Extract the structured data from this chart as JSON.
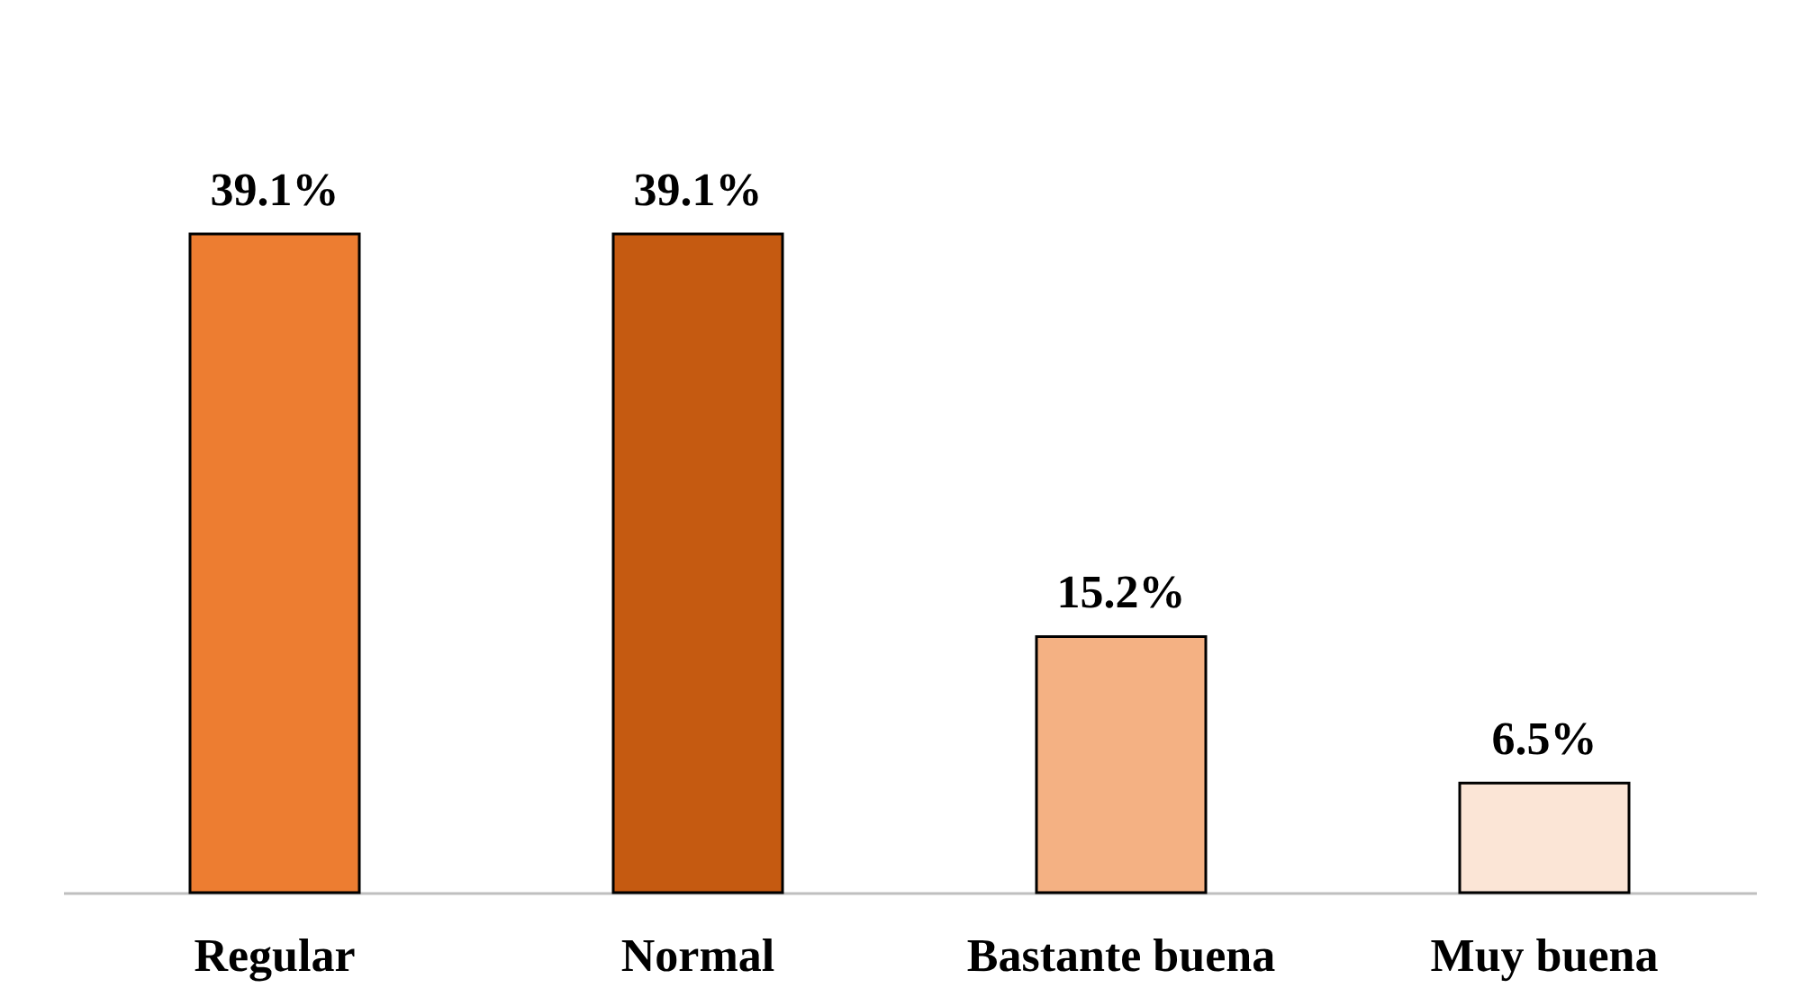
{
  "chart_data": {
    "type": "bar",
    "categories": [
      "Regular",
      "Normal",
      "Bastante buena",
      "Muy buena"
    ],
    "values": [
      39.1,
      39.1,
      15.2,
      6.5
    ],
    "colors": [
      "#ed7d31",
      "#c55a11",
      "#f4b183",
      "#fbe5d6"
    ],
    "value_labels": [
      "39.1%",
      "39.1%",
      "15.2%",
      "6.5%"
    ]
  }
}
